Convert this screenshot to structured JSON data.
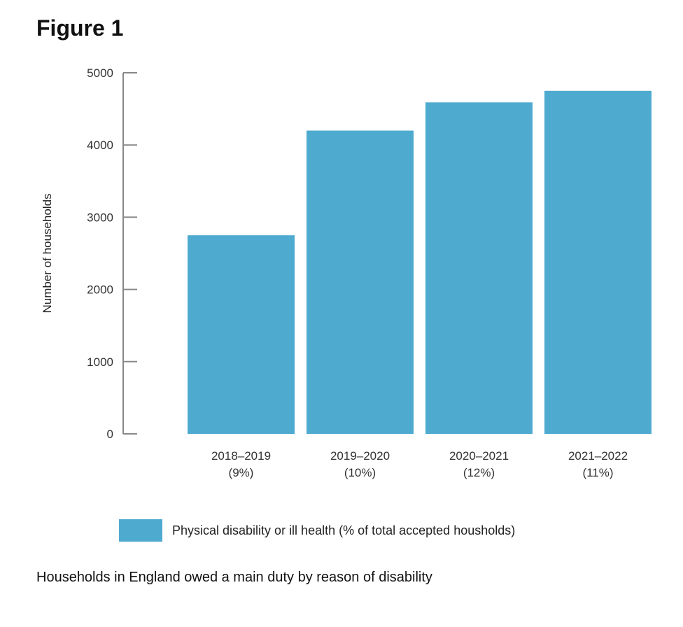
{
  "figure": {
    "title": "Figure 1",
    "caption": "Households in England owed a main duty by reason of disability"
  },
  "legend": {
    "label": "Physical disability or ill health (% of total accepted housholds)",
    "color": "#4FAAD0"
  },
  "chart_data": {
    "type": "bar",
    "title": "Figure 1",
    "xlabel": "",
    "ylabel": "Number of households",
    "ylim": [
      0,
      5000
    ],
    "yticks": [
      0,
      1000,
      2000,
      3000,
      4000,
      5000
    ],
    "categories": [
      {
        "period": "2018–2019",
        "share": "(9%)"
      },
      {
        "period": "2019–2020",
        "share": "(10%)"
      },
      {
        "period": "2020–2021",
        "share": "(12%)"
      },
      {
        "period": "2021–2022",
        "share": "(11%)"
      }
    ],
    "series": [
      {
        "name": "Physical disability or ill health (% of total accepted housholds)",
        "values": [
          2750,
          4200,
          4590,
          4750
        ]
      }
    ],
    "legend_position": "bottom",
    "grid": false
  }
}
